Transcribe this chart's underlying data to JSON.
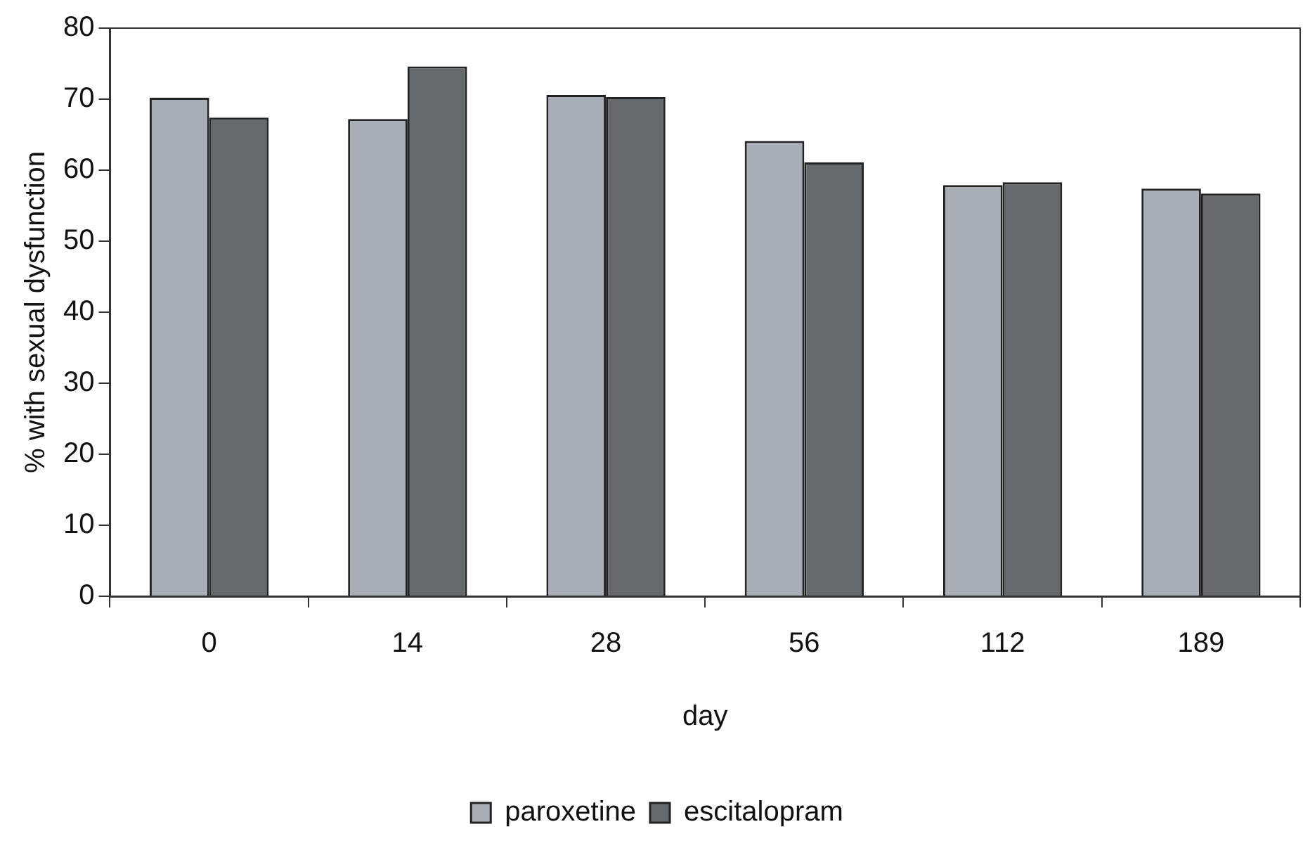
{
  "chart_data": {
    "type": "bar",
    "xlabel": "day",
    "ylabel": "% with sexual dysfunction",
    "categories": [
      "0",
      "14",
      "28",
      "56",
      "112",
      "189"
    ],
    "series": [
      {
        "name": "paroxetine",
        "color": "#a9adb5",
        "values": [
          70.2,
          67.2,
          70.6,
          64.1,
          57.9,
          57.4
        ]
      },
      {
        "name": "escitalopram",
        "color": "#65696b",
        "values": [
          67.4,
          74.6,
          70.3,
          61.1,
          58.3,
          56.7
        ]
      }
    ],
    "ylim": [
      0,
      80
    ],
    "yticks": [
      0,
      10,
      20,
      30,
      40,
      50,
      60,
      70,
      80
    ],
    "grid": false,
    "legend": "bottom"
  }
}
